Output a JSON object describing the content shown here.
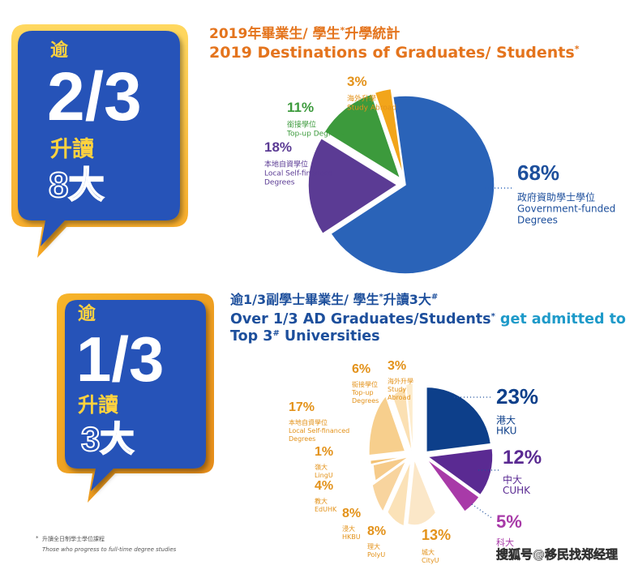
{
  "section1": {
    "badge": {
      "prefix": "逾",
      "big": "2/3",
      "line1": "升讀",
      "line2": "8大"
    },
    "title_zh": "2019年畢業生/ 學生",
    "title_zh_mark": "*",
    "title_zh_end": "升學統計",
    "title_en": "2019 Destinations of Graduates/ Students",
    "title_en_mark": "*"
  },
  "section2": {
    "badge": {
      "prefix": "逾",
      "big": "1/3",
      "line1": "升讀",
      "line2": "3大"
    },
    "title_zh": "逾1/3副學士畢業生/ 學生",
    "title_zh_mark1": "*",
    "title_zh_mid": "升讀3大",
    "title_zh_mark2": "#",
    "title_en_a": "Over 1/3 AD Graduates/Students",
    "title_en_mark": "*",
    "title_en_b": " get admitted to",
    "title_en_c": "Top 3",
    "title_en_mark2": "#",
    "title_en_d": " Universities"
  },
  "footnote": {
    "zh": "升讀全日制學士學位課程",
    "en": "Those who progress to full-time degree studies"
  },
  "watermark": "搜狐号@移民找郑经理",
  "chart_data": [
    {
      "type": "pie",
      "title": "2019 Destinations of Graduates/ Students",
      "categories": [
        "政府資助學士學位 Government-funded Degrees",
        "本地自資學位 Local Self-financed Degrees",
        "銜接學位 Top-up Degrees",
        "海外升學 Study Abroad"
      ],
      "values": [
        68,
        18,
        11,
        3
      ],
      "labels": [
        {
          "pct": "68%",
          "zh": "政府資助學士學位",
          "en1": "Government-funded",
          "en2": "Degrees"
        },
        {
          "pct": "18%",
          "zh": "本地自資學位",
          "en1": "Local Self-financed",
          "en2": "Degrees"
        },
        {
          "pct": "11%",
          "zh": "銜接學位",
          "en1": "Top-up Degrees",
          "en2": ""
        },
        {
          "pct": "3%",
          "zh": "海外升學",
          "en1": "Study Abroad",
          "en2": ""
        }
      ],
      "colors": [
        "#2a63b8",
        "#5b3b94",
        "#3c9a3c",
        "#f2a51a"
      ]
    },
    {
      "type": "pie",
      "title": "Over 1/3 AD Graduates/Students get admitted to Top 3 Universities",
      "categories": [
        "港大 HKU",
        "中大 CUHK",
        "科大",
        "城大 CityU",
        "理大 PolyU",
        "浸大 HKBU",
        "教大 EdUHK",
        "嶺大 LingU",
        "本地自資學位 Local Self-financed Degrees",
        "銜接學位 Top-up Degrees",
        "海外升學 Study Abroad"
      ],
      "values": [
        23,
        12,
        5,
        13,
        8,
        8,
        4,
        1,
        17,
        6,
        3
      ],
      "labels": [
        {
          "pct": "23%",
          "zh": "港大",
          "en1": "HKU",
          "en2": ""
        },
        {
          "pct": "12%",
          "zh": "中大",
          "en1": "CUHK",
          "en2": ""
        },
        {
          "pct": "5%",
          "zh": "科大",
          "en1": "",
          "en2": ""
        },
        {
          "pct": "13%",
          "zh": "城大",
          "en1": "CityU",
          "en2": ""
        },
        {
          "pct": "8%",
          "zh": "理大",
          "en1": "PolyU",
          "en2": ""
        },
        {
          "pct": "8%",
          "zh": "浸大",
          "en1": "HKBU",
          "en2": ""
        },
        {
          "pct": "4%",
          "zh": "教大",
          "en1": "EdUHK",
          "en2": ""
        },
        {
          "pct": "1%",
          "zh": "嶺大",
          "en1": "LingU",
          "en2": ""
        },
        {
          "pct": "17%",
          "zh": "本地自資學位",
          "en1": "Local Self-financed",
          "en2": "Degrees"
        },
        {
          "pct": "6%",
          "zh": "銜接學位",
          "en1": "Top-up",
          "en2": "Degrees"
        },
        {
          "pct": "3%",
          "zh": "海外升學",
          "en1": "Study",
          "en2": "Abroad"
        }
      ],
      "colors": [
        "#0d3f8a",
        "#5a2a92",
        "#a83aa8",
        "#fbe7c8",
        "#fbe2b8",
        "#f8d49e",
        "#f6cb8a",
        "#f3c274",
        "#f7cf8d",
        "#fbe0b3",
        "#fdeccd"
      ]
    }
  ]
}
